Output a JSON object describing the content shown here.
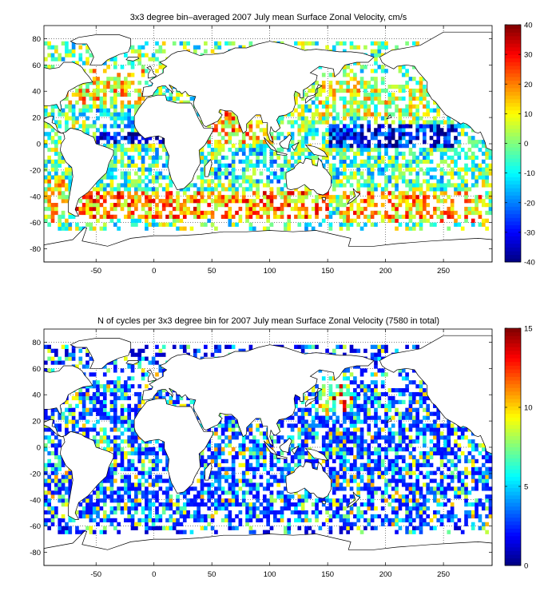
{
  "chart_data": [
    {
      "type": "heatmap",
      "title": "3x3 degree bin–averaged 2007 July mean Surface Zonal Velocity, cm/s",
      "xlabel": "",
      "ylabel": "",
      "xlim": [
        -95,
        292
      ],
      "ylim": [
        -90,
        90
      ],
      "x_ticks": [
        -50,
        0,
        50,
        100,
        150,
        200,
        250
      ],
      "y_ticks": [
        -80,
        -60,
        -40,
        -20,
        0,
        20,
        40,
        60,
        80
      ],
      "colorbar": {
        "min": -40,
        "max": 40,
        "ticks": [
          -40,
          -30,
          -20,
          -10,
          0,
          10,
          20,
          30,
          40
        ],
        "colormap": "jet"
      },
      "bin_size_deg": 3,
      "grid": true,
      "regions": [
        {
          "lon": [
            -80,
            -10
          ],
          "lat": [
            30,
            55
          ],
          "value": 12
        },
        {
          "lon": [
            -40,
            10
          ],
          "lat": [
            55,
            72
          ],
          "value": 0
        },
        {
          "lon": [
            -50,
            10
          ],
          "lat": [
            -2,
            8
          ],
          "value": -35
        },
        {
          "lon": [
            -55,
            10
          ],
          "lat": [
            12,
            24
          ],
          "value": -8
        },
        {
          "lon": [
            -40,
            15
          ],
          "lat": [
            -40,
            -5
          ],
          "value": -5
        },
        {
          "lon": [
            -70,
            150
          ],
          "lat": [
            -58,
            -38
          ],
          "value": 18
        },
        {
          "lon": [
            45,
            100
          ],
          "lat": [
            0,
            25
          ],
          "value": 15
        },
        {
          "lon": [
            50,
            110
          ],
          "lat": [
            -30,
            -5
          ],
          "value": -10
        },
        {
          "lon": [
            140,
            240
          ],
          "lat": [
            20,
            45
          ],
          "value": 5
        },
        {
          "lon": [
            150,
            260
          ],
          "lat": [
            -5,
            12
          ],
          "value": -30
        },
        {
          "lon": [
            140,
            250
          ],
          "lat": [
            -35,
            -10
          ],
          "value": -5
        },
        {
          "lon": [
            160,
            280
          ],
          "lat": [
            -60,
            -38
          ],
          "value": 15
        },
        {
          "lon": [
            -95,
            -75
          ],
          "lat": [
            -60,
            -30
          ],
          "value": 10
        }
      ]
    },
    {
      "type": "heatmap",
      "title": "N of cycles per 3x3 degree bin for 2007 July mean Surface Zonal Velocity (7580 in total)",
      "xlabel": "",
      "ylabel": "",
      "xlim": [
        -95,
        292
      ],
      "ylim": [
        -90,
        90
      ],
      "x_ticks": [
        -50,
        0,
        50,
        100,
        150,
        200,
        250
      ],
      "y_ticks": [
        -80,
        -60,
        -40,
        -20,
        0,
        20,
        40,
        60,
        80
      ],
      "colorbar": {
        "min": 0,
        "max": 15,
        "ticks": [
          0,
          5,
          10,
          15
        ],
        "colormap": "jet"
      },
      "bin_size_deg": 3,
      "grid": true,
      "total_cycles": 7580,
      "regions": [
        {
          "lon": [
            -80,
            -10
          ],
          "lat": [
            30,
            55
          ],
          "value": 4
        },
        {
          "lon": [
            -95,
            290
          ],
          "lat": [
            -60,
            60
          ],
          "value": 2
        },
        {
          "lon": [
            140,
            170
          ],
          "lat": [
            25,
            45
          ],
          "value": 6
        }
      ]
    }
  ]
}
